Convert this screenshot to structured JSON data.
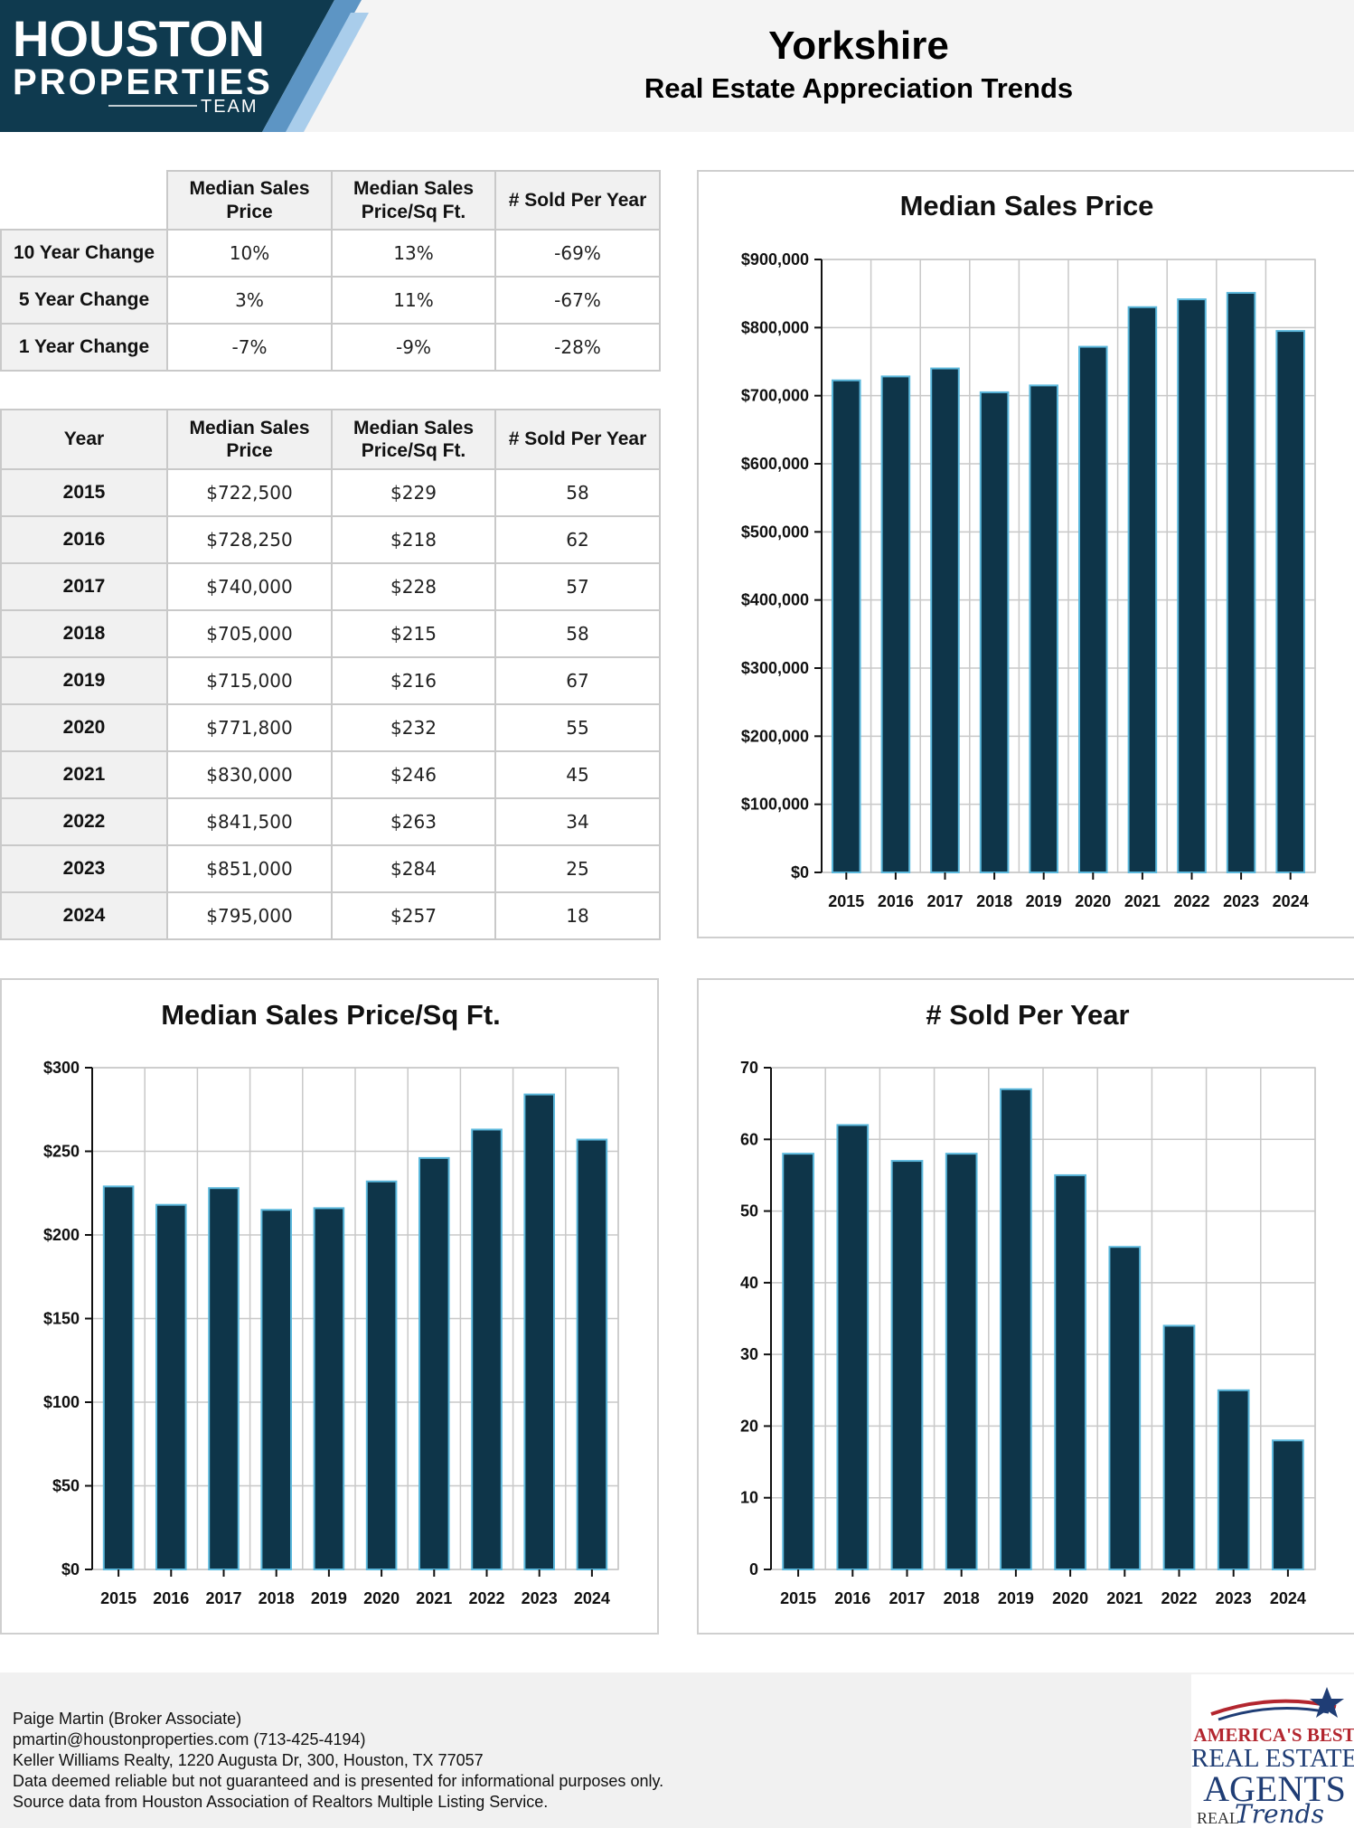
{
  "header": {
    "logo_line1": "HOUSTON",
    "logo_line2": "PROPERTIES",
    "logo_line3": "TEAM",
    "title": "Yorkshire",
    "subtitle": "Real Estate Appreciation Trends"
  },
  "colors": {
    "navy": "#0f3a4f",
    "bar_fill": "#0e3549",
    "bar_edge": "#5bb8dc",
    "logo_accent": "#7fb3d9",
    "badge_red": "#b3262f",
    "badge_blue": "#1f3d75"
  },
  "change_table": {
    "headers": [
      "Median Sales Price",
      "Median Sales Price/Sq Ft.",
      "# Sold Per Year"
    ],
    "rows": [
      {
        "label": "10 Year Change",
        "values": [
          "10%",
          "13%",
          "-69%"
        ]
      },
      {
        "label": "5 Year Change",
        "values": [
          "3%",
          "11%",
          "-67%"
        ]
      },
      {
        "label": "1 Year Change",
        "values": [
          "-7%",
          "-9%",
          "-28%"
        ]
      }
    ]
  },
  "year_table": {
    "headers": [
      "Year",
      "Median Sales Price",
      "Median Sales Price/Sq Ft.",
      "# Sold Per Year"
    ],
    "rows": [
      [
        "2015",
        "$722,500",
        "$229",
        "58"
      ],
      [
        "2016",
        "$728,250",
        "$218",
        "62"
      ],
      [
        "2017",
        "$740,000",
        "$228",
        "57"
      ],
      [
        "2018",
        "$705,000",
        "$215",
        "58"
      ],
      [
        "2019",
        "$715,000",
        "$216",
        "67"
      ],
      [
        "2020",
        "$771,800",
        "$232",
        "55"
      ],
      [
        "2021",
        "$830,000",
        "$246",
        "45"
      ],
      [
        "2022",
        "$841,500",
        "$263",
        "34"
      ],
      [
        "2023",
        "$851,000",
        "$284",
        "25"
      ],
      [
        "2024",
        "$795,000",
        "$257",
        "18"
      ]
    ]
  },
  "chart_data": [
    {
      "type": "bar",
      "title": "Median Sales Price",
      "categories": [
        "2015",
        "2016",
        "2017",
        "2018",
        "2019",
        "2020",
        "2021",
        "2022",
        "2023",
        "2024"
      ],
      "values": [
        722500,
        728250,
        740000,
        705000,
        715000,
        771800,
        830000,
        841500,
        851000,
        795000
      ],
      "ylim": [
        0,
        900000
      ],
      "yticks": [
        0,
        100000,
        200000,
        300000,
        400000,
        500000,
        600000,
        700000,
        800000,
        900000
      ],
      "ytick_labels": [
        "$0",
        "$100,000",
        "$200,000",
        "$300,000",
        "$400,000",
        "$500,000",
        "$600,000",
        "$700,000",
        "$800,000",
        "$900,000"
      ],
      "xlabel": "",
      "ylabel": "",
      "grid": true
    },
    {
      "type": "bar",
      "title": "Median Sales Price/Sq Ft.",
      "categories": [
        "2015",
        "2016",
        "2017",
        "2018",
        "2019",
        "2020",
        "2021",
        "2022",
        "2023",
        "2024"
      ],
      "values": [
        229,
        218,
        228,
        215,
        216,
        232,
        246,
        263,
        284,
        257
      ],
      "ylim": [
        0,
        300
      ],
      "yticks": [
        0,
        50,
        100,
        150,
        200,
        250,
        300
      ],
      "ytick_labels": [
        "$0",
        "$50",
        "$100",
        "$150",
        "$200",
        "$250",
        "$300"
      ],
      "xlabel": "",
      "ylabel": "",
      "grid": true
    },
    {
      "type": "bar",
      "title": "# Sold Per Year",
      "categories": [
        "2015",
        "2016",
        "2017",
        "2018",
        "2019",
        "2020",
        "2021",
        "2022",
        "2023",
        "2024"
      ],
      "values": [
        58,
        62,
        57,
        58,
        67,
        55,
        45,
        34,
        25,
        18
      ],
      "ylim": [
        0,
        70
      ],
      "yticks": [
        0,
        10,
        20,
        30,
        40,
        50,
        60,
        70
      ],
      "ytick_labels": [
        "0",
        "10",
        "20",
        "30",
        "40",
        "50",
        "60",
        "70"
      ],
      "xlabel": "",
      "ylabel": "",
      "grid": true
    }
  ],
  "footer": {
    "lines": [
      "Paige Martin (Broker Associate)",
      "pmartin@houstonproperties.com (713-425-4194)",
      "Keller Williams Realty, 1220 Augusta Dr, 300, Houston, TX 77057",
      "Data deemed reliable but not guaranteed and is presented for informational purposes only.",
      "Source data from Houston Association of Realtors Multiple Listing Service."
    ],
    "badge_line1": "AMERICA'S BEST",
    "badge_line2": "REAL ESTATE",
    "badge_line3": "AGENTS",
    "badge_line4": "REAL",
    "badge_line5": "Trends"
  }
}
